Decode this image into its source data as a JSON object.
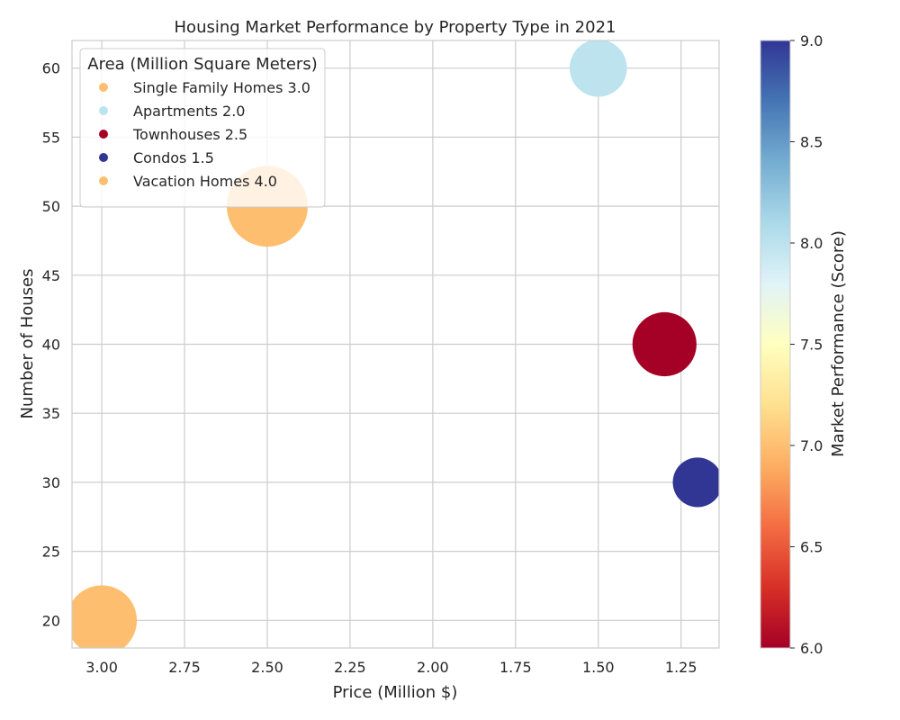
{
  "chart_data": {
    "type": "scatter",
    "title": "Housing Market Performance by Property Type in 2021",
    "xlabel": "Price (Million $)",
    "ylabel": "Number of Houses",
    "xlim": [
      3.09,
      1.135
    ],
    "ylim": [
      18,
      62
    ],
    "x_inverted": true,
    "x_ticks": [
      "3.00",
      "2.75",
      "2.50",
      "2.25",
      "2.00",
      "1.75",
      "1.50",
      "1.25"
    ],
    "x_tick_values": [
      3.0,
      2.75,
      2.5,
      2.25,
      2.0,
      1.75,
      1.5,
      1.25
    ],
    "y_ticks": [
      "20",
      "25",
      "30",
      "35",
      "40",
      "45",
      "50",
      "55",
      "60"
    ],
    "y_tick_values": [
      20,
      25,
      30,
      35,
      40,
      45,
      50,
      55,
      60
    ],
    "grid": true,
    "legend_title": "Area (Million Square Meters)",
    "legend_placement": "top-left",
    "points": [
      {
        "label": "Single Family Homes 3.0",
        "x": 3.0,
        "y": 20,
        "area": 3.0,
        "performance": 7.0,
        "color": "#fdbf6f"
      },
      {
        "label": "Apartments 2.0",
        "x": 1.5,
        "y": 60,
        "area": 2.0,
        "performance": 8.0,
        "color": "#bde3ee"
      },
      {
        "label": "Townhouses 2.5",
        "x": 1.3,
        "y": 40,
        "area": 2.5,
        "performance": 6.0,
        "color": "#a50026"
      },
      {
        "label": "Condos 1.5",
        "x": 1.2,
        "y": 30,
        "area": 1.5,
        "performance": 9.0,
        "color": "#313695"
      },
      {
        "label": "Vacation Homes 4.0",
        "x": 2.5,
        "y": 50,
        "area": 4.0,
        "performance": 7.0,
        "color": "#fdbf6f"
      }
    ],
    "colorbar": {
      "label": "Market Performance (Score)",
      "range": [
        6.0,
        9.0
      ],
      "ticks": [
        "6.0",
        "6.5",
        "7.0",
        "7.5",
        "8.0",
        "8.5",
        "9.0"
      ],
      "tick_values": [
        6.0,
        6.5,
        7.0,
        7.5,
        8.0,
        8.5,
        9.0
      ],
      "colormap": [
        "#a50026",
        "#d73027",
        "#f46d43",
        "#fdae61",
        "#fee090",
        "#ffffbf",
        "#e0f3f8",
        "#abd9e9",
        "#74add1",
        "#4575b4",
        "#313695"
      ]
    }
  }
}
